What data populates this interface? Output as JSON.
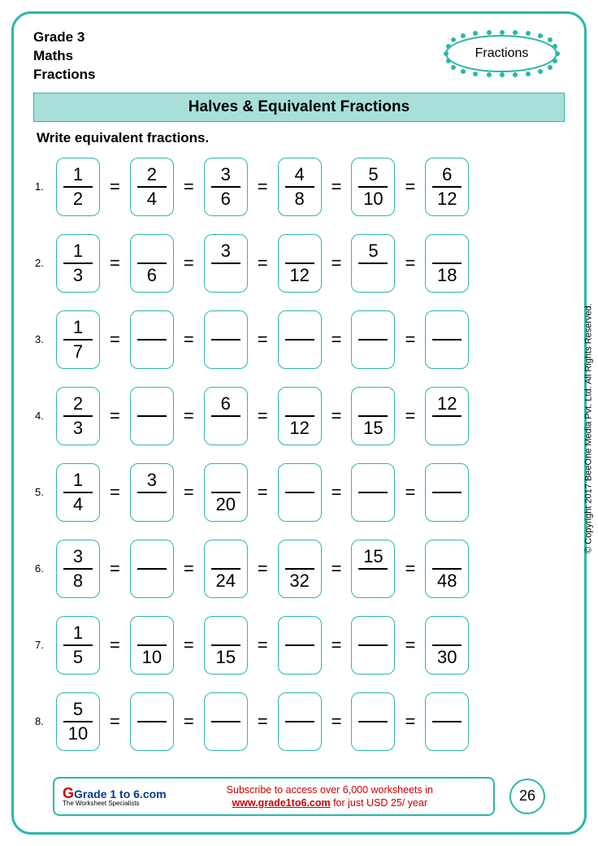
{
  "header": {
    "line1": "Grade 3",
    "line2": "Maths",
    "line3": "Fractions",
    "badge": "Fractions"
  },
  "title": "Halves & Equivalent Fractions",
  "instruction": "Write equivalent fractions.",
  "colors": {
    "accent": "#2bb8a8",
    "title_bg": "#a8e0d9",
    "red": "#cc0000",
    "blue": "#003b8e"
  },
  "rows": [
    {
      "n": "1.",
      "cells": [
        {
          "num": "1",
          "den": "2"
        },
        {
          "num": "2",
          "den": "4"
        },
        {
          "num": "3",
          "den": "6"
        },
        {
          "num": "4",
          "den": "8"
        },
        {
          "num": "5",
          "den": "10"
        },
        {
          "num": "6",
          "den": "12"
        }
      ]
    },
    {
      "n": "2.",
      "cells": [
        {
          "num": "1",
          "den": "3"
        },
        {
          "num": "",
          "den": "6"
        },
        {
          "num": "3",
          "den": ""
        },
        {
          "num": "",
          "den": "12"
        },
        {
          "num": "5",
          "den": ""
        },
        {
          "num": "",
          "den": "18"
        }
      ]
    },
    {
      "n": "3.",
      "cells": [
        {
          "num": "1",
          "den": "7"
        },
        {
          "num": "",
          "den": ""
        },
        {
          "num": "",
          "den": ""
        },
        {
          "num": "",
          "den": ""
        },
        {
          "num": "",
          "den": ""
        },
        {
          "num": "",
          "den": ""
        }
      ]
    },
    {
      "n": "4.",
      "cells": [
        {
          "num": "2",
          "den": "3"
        },
        {
          "num": "",
          "den": ""
        },
        {
          "num": "6",
          "den": ""
        },
        {
          "num": "",
          "den": "12"
        },
        {
          "num": "",
          "den": "15"
        },
        {
          "num": "12",
          "den": ""
        }
      ]
    },
    {
      "n": "5.",
      "cells": [
        {
          "num": "1",
          "den": "4"
        },
        {
          "num": "3",
          "den": ""
        },
        {
          "num": "",
          "den": "20"
        },
        {
          "num": "",
          "den": ""
        },
        {
          "num": "",
          "den": ""
        },
        {
          "num": "",
          "den": ""
        }
      ]
    },
    {
      "n": "6.",
      "cells": [
        {
          "num": "3",
          "den": "8"
        },
        {
          "num": "",
          "den": ""
        },
        {
          "num": "",
          "den": "24"
        },
        {
          "num": "",
          "den": "32"
        },
        {
          "num": "15",
          "den": ""
        },
        {
          "num": "",
          "den": "48"
        }
      ]
    },
    {
      "n": "7.",
      "cells": [
        {
          "num": "1",
          "den": "5"
        },
        {
          "num": "",
          "den": "10"
        },
        {
          "num": "",
          "den": "15"
        },
        {
          "num": "",
          "den": ""
        },
        {
          "num": "",
          "den": ""
        },
        {
          "num": "",
          "den": "30"
        }
      ]
    },
    {
      "n": "8.",
      "cells": [
        {
          "num": "5",
          "den": "10"
        },
        {
          "num": "",
          "den": ""
        },
        {
          "num": "",
          "den": ""
        },
        {
          "num": "",
          "den": ""
        },
        {
          "num": "",
          "den": ""
        },
        {
          "num": "",
          "den": ""
        }
      ]
    }
  ],
  "copyright": "© Copyright 2017 BeeOne Media Pvt. Ltd. All Rights Reserved.",
  "footer": {
    "logo_main": "Grade 1 to 6.com",
    "logo_sub": "The Worksheet Specialists",
    "text1": "Subscribe to access over 6,000 worksheets in",
    "link": "www.grade1to6.com",
    "text2": " for just USD 25/ year",
    "page": "26"
  }
}
